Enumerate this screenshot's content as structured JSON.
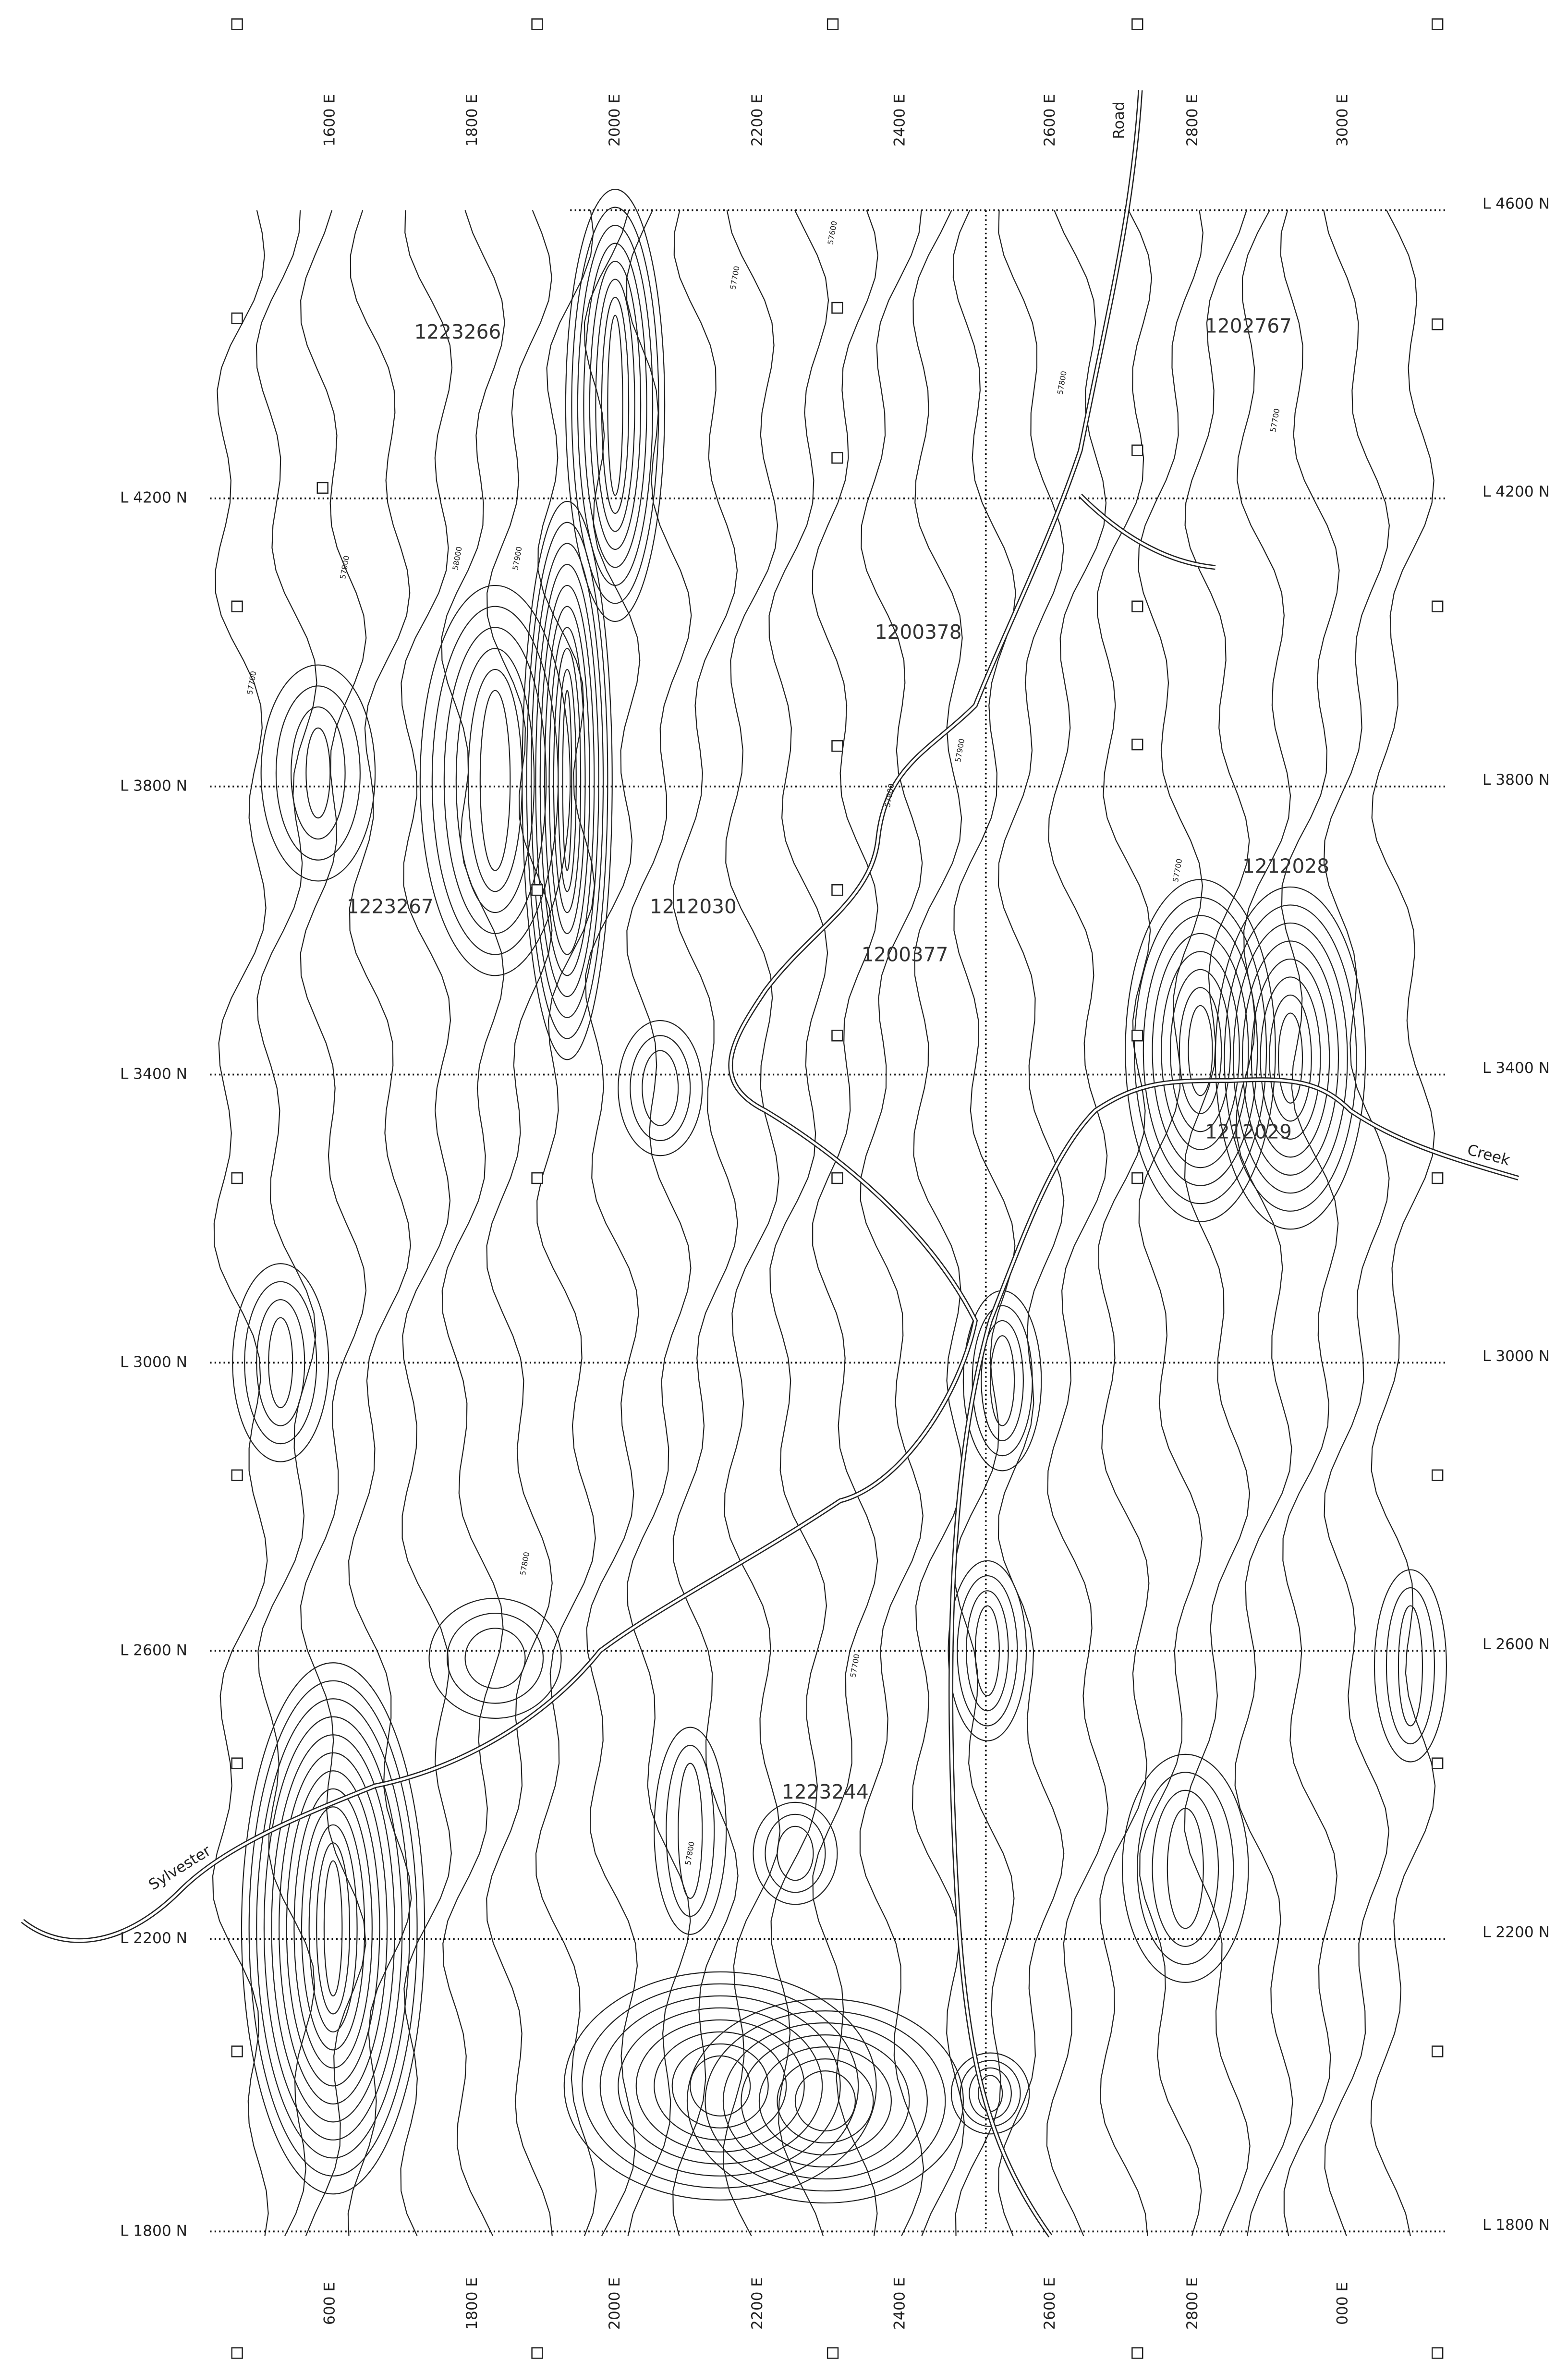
{
  "northings": [
    "L 4600 N",
    "L 4200 N",
    "L 3800 N",
    "L 3400 N",
    "L 3000 N",
    "L 2600 N",
    "L 2200 N",
    "L 1800 N"
  ],
  "top_eastings": [
    "1600 E",
    "1800 E",
    "2000 E",
    "2200 E",
    "2400 E",
    "2600 E",
    "2800 E",
    "3000 E"
  ],
  "bottom_eastings": [
    "600 E",
    "1800 E",
    "2000 E",
    "2200 E",
    "2400 E",
    "2600 E",
    "2800 E",
    "000 E"
  ],
  "claims": [
    "1223266",
    "1202767",
    "1200378",
    "1223267",
    "1212030",
    "1200377",
    "1212028",
    "1212029",
    "1223244"
  ],
  "features": {
    "road": "Road",
    "creek": "Creek",
    "river": "Sylvester"
  },
  "contour_labels": [
    "57700",
    "57800",
    "58000",
    "57900",
    "57600",
    "57700",
    "57800",
    "57700",
    "57800",
    "57700",
    "57900",
    "57800",
    "57700",
    "57800"
  ]
}
